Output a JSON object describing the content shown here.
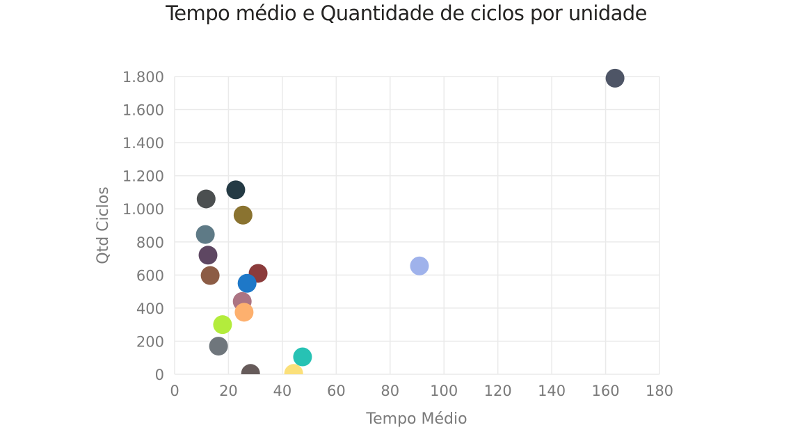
{
  "title": "Tempo médio e Quantidade de ciclos por unidade",
  "chart_data": {
    "type": "scatter",
    "title": "Tempo médio e Quantidade de ciclos por unidade",
    "xlabel": "Tempo Médio",
    "ylabel": "Qtd Ciclos",
    "xlim": [
      0,
      180
    ],
    "ylim": [
      0,
      1800
    ],
    "xticks": [
      0,
      20,
      40,
      60,
      80,
      100,
      120,
      140,
      160,
      180
    ],
    "yticks": [
      0,
      200,
      400,
      600,
      800,
      1000,
      1200,
      1400,
      1600,
      1800
    ],
    "xtick_labels": [
      "0",
      "20",
      "40",
      "60",
      "80",
      "100",
      "120",
      "140",
      "160",
      "180"
    ],
    "ytick_labels": [
      "0",
      "200",
      "400",
      "600",
      "800",
      "1.000",
      "1.200",
      "1.400",
      "1.600",
      "1.800"
    ],
    "grid": true,
    "legend": "none",
    "points": [
      {
        "x": 163.5,
        "y": 1790,
        "color": "#4e5566"
      },
      {
        "x": 22.7,
        "y": 1115,
        "color": "#243a44"
      },
      {
        "x": 11.7,
        "y": 1060,
        "color": "#4b4f50"
      },
      {
        "x": 25.4,
        "y": 962,
        "color": "#8a7330"
      },
      {
        "x": 11.4,
        "y": 845,
        "color": "#5e7a86"
      },
      {
        "x": 12.4,
        "y": 720,
        "color": "#5e4762"
      },
      {
        "x": 13.2,
        "y": 597,
        "color": "#8c5c45"
      },
      {
        "x": 31.0,
        "y": 610,
        "color": "#8b3b3b"
      },
      {
        "x": 26.9,
        "y": 550,
        "color": "#1e78c8"
      },
      {
        "x": 90.9,
        "y": 655,
        "color": "#9fb2eb"
      },
      {
        "x": 25.1,
        "y": 440,
        "color": "#ac7483"
      },
      {
        "x": 25.8,
        "y": 375,
        "color": "#fdb06e"
      },
      {
        "x": 17.8,
        "y": 300,
        "color": "#b3ec3c"
      },
      {
        "x": 16.3,
        "y": 170,
        "color": "#6f767c"
      },
      {
        "x": 47.5,
        "y": 105,
        "color": "#27c2b4"
      },
      {
        "x": 28.2,
        "y": 5,
        "color": "#665b5a"
      },
      {
        "x": 44.2,
        "y": 5,
        "color": "#fbe07a"
      }
    ]
  }
}
